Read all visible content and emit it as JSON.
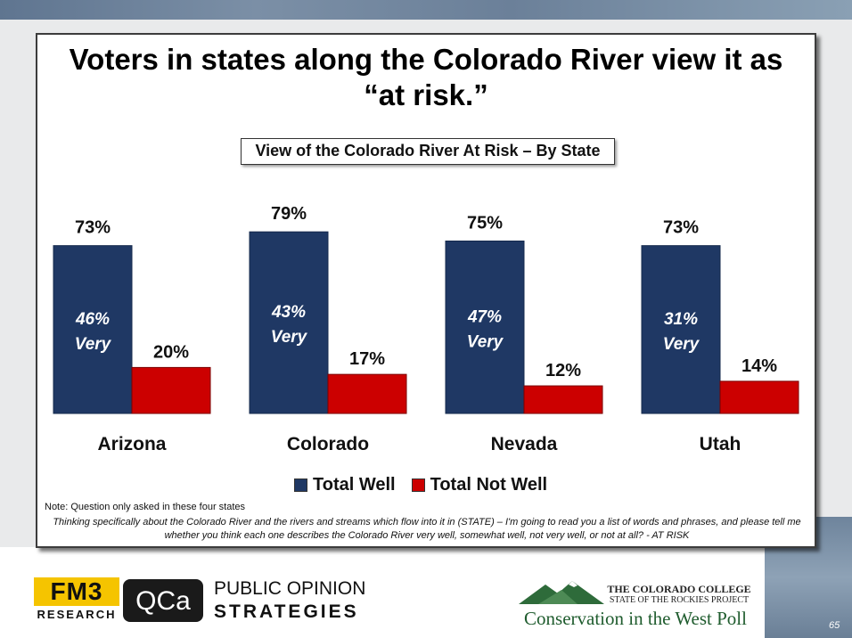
{
  "title_line1": "Voters in states along the Colorado River view it as",
  "title_line2": "“at risk.”",
  "chart_title": "View of the Colorado River At Risk – By State",
  "chart_data": {
    "type": "bar",
    "categories": [
      "Arizona",
      "Colorado",
      "Nevada",
      "Utah"
    ],
    "series": [
      {
        "name": "Total Well",
        "values": [
          73,
          79,
          75,
          73
        ],
        "color": "#1f3864",
        "labels": [
          "73%",
          "79%",
          "75%",
          "73%"
        ]
      },
      {
        "name": "Total Not Well",
        "values": [
          20,
          17,
          12,
          14
        ],
        "color": "#cc0000",
        "labels": [
          "20%",
          "17%",
          "12%",
          "14%"
        ]
      }
    ],
    "very_values": [
      46,
      43,
      47,
      31
    ],
    "very_labels": [
      "46%",
      "43%",
      "47%",
      "31%"
    ],
    "very_word": "Very",
    "ylim": [
      0,
      100
    ],
    "legend_position": "bottom",
    "grid": false
  },
  "note": "Note: Question only asked in these four states",
  "question_text": "Thinking specifically about the Colorado River and the rivers and streams which flow into it in (STATE) – I'm going to read you a list of words and phrases, and please tell me whether you think each one describes the Colorado River very well, somewhat well, not very well, or not at all? - AT RISK",
  "footer": {
    "fm3_top": "FM3",
    "fm3_bottom": "RESEARCH",
    "qca_text": "QCa",
    "pos_line1": "PUBLIC OPINION",
    "pos_line2": "STRATEGIES",
    "cc_line1": "THE COLORADO COLLEGE",
    "cc_line2": "STATE OF THE ROCKIES PROJECT",
    "cc_line3": "Conservation in the West Poll"
  },
  "page_number": "65"
}
